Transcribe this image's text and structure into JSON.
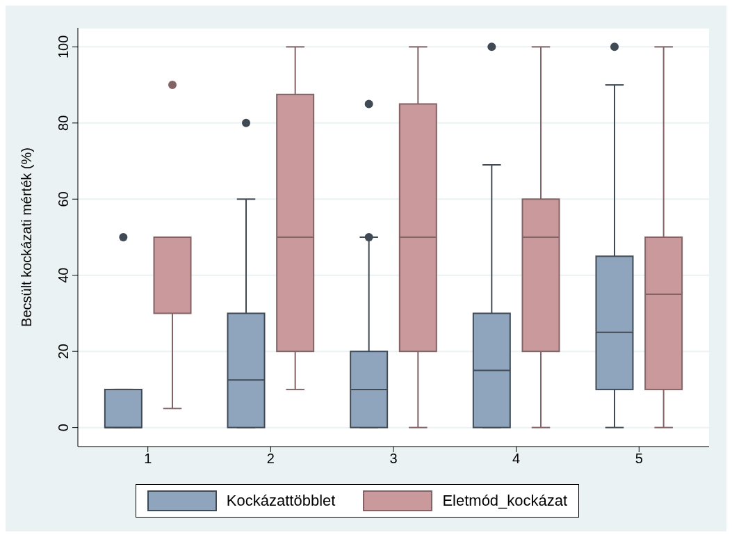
{
  "chart_data": {
    "type": "box",
    "ylabel": "Becsült kockázati mérték (%)",
    "categories": [
      "1",
      "2",
      "3",
      "4",
      "5"
    ],
    "ylim": [
      -5,
      105
    ],
    "yticks": [
      0,
      20,
      40,
      60,
      80,
      100
    ],
    "grid": "y",
    "legend": "bottom",
    "series": [
      {
        "name": "Kockázattöbblet",
        "color": "#8ea5bd",
        "boxes": [
          {
            "low": 0,
            "q1": 0,
            "median": 0,
            "q3": 10,
            "high": 10,
            "outliers": [
              50
            ]
          },
          {
            "low": 0,
            "q1": 0,
            "median": 12.5,
            "q3": 30,
            "high": 60,
            "outliers": [
              80
            ]
          },
          {
            "low": 0,
            "q1": 0,
            "median": 10,
            "q3": 20,
            "high": 50,
            "outliers": [
              50,
              85
            ]
          },
          {
            "low": 0,
            "q1": 0,
            "median": 15,
            "q3": 30,
            "high": 69,
            "outliers": [
              100
            ]
          },
          {
            "low": 0,
            "q1": 10,
            "median": 25,
            "q3": 45,
            "high": 90,
            "outliers": [
              100
            ]
          }
        ]
      },
      {
        "name": "Eletmód_kockázat",
        "color": "#c9999c",
        "boxes": [
          {
            "low": 5,
            "q1": 30,
            "median": 50,
            "q3": 50,
            "high": 50,
            "outliers": [
              90
            ]
          },
          {
            "low": 10,
            "q1": 20,
            "median": 50,
            "q3": 87.5,
            "high": 100
          },
          {
            "low": 0,
            "q1": 20,
            "median": 50,
            "q3": 85,
            "high": 100
          },
          {
            "low": 0,
            "q1": 20,
            "median": 50,
            "q3": 60,
            "high": 100
          },
          {
            "low": 0,
            "q1": 10,
            "median": 35,
            "q3": 50,
            "high": 100
          }
        ]
      }
    ]
  }
}
